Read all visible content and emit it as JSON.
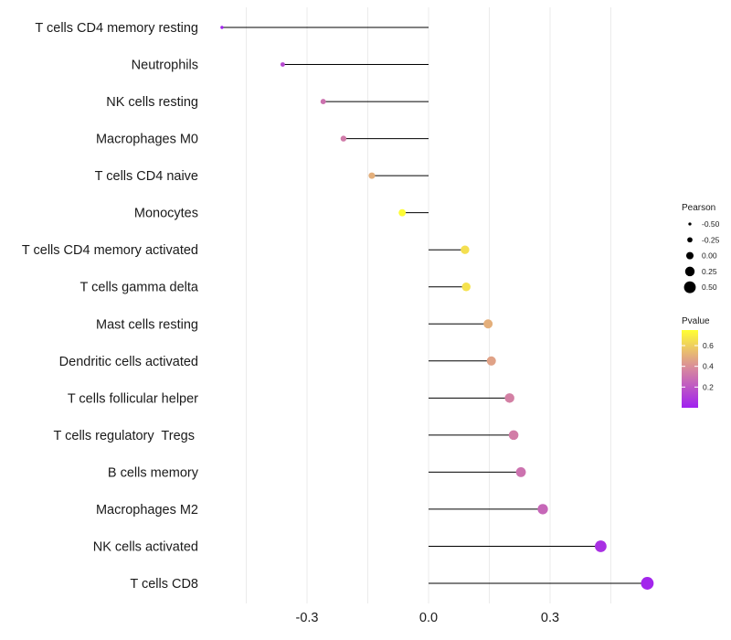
{
  "chart_data": {
    "type": "lollipop",
    "xlabel": "",
    "ylabel": "",
    "xlim": [
      -0.54,
      0.56
    ],
    "xticks": [
      "-0.3",
      "0.0",
      "0.3"
    ],
    "xtick_values": [
      -0.3,
      0.0,
      0.3
    ],
    "grid": true,
    "categories": [
      "T cells CD4 memory resting",
      "Neutrophils",
      "NK cells resting",
      "Macrophages M0",
      "T cells CD4 naive",
      "Monocytes",
      "T cells CD4 memory activated",
      "T cells gamma delta",
      "Mast cells resting",
      "Dendritic cells activated",
      "T cells follicular helper",
      "T cells regulatory  Tregs ",
      "B cells memory",
      "Macrophages M2",
      "NK cells activated",
      "T cells CD8"
    ],
    "pearson": [
      -0.51,
      -0.36,
      -0.26,
      -0.21,
      -0.14,
      -0.065,
      0.09,
      0.093,
      0.147,
      0.155,
      0.2,
      0.21,
      0.228,
      0.282,
      0.425,
      0.54
    ],
    "pvalue": [
      0.01,
      0.15,
      0.3,
      0.33,
      0.5,
      0.74,
      0.65,
      0.66,
      0.5,
      0.46,
      0.35,
      0.34,
      0.3,
      0.26,
      0.06,
      0.02
    ],
    "legend_size": {
      "title": "Pearson",
      "labels": [
        "-0.50",
        "-0.25",
        "0.00",
        "0.25",
        "0.50"
      ],
      "values": [
        -0.5,
        -0.25,
        0.0,
        0.25,
        0.5
      ]
    },
    "legend_color": {
      "title": "Pvalue",
      "labels": [
        "0.2",
        "0.4",
        "0.6"
      ],
      "values": [
        0.2,
        0.4,
        0.6
      ],
      "range": [
        0.0,
        0.75
      ],
      "low_color": "#a020f0",
      "mid_color": "#d7879f",
      "high_color": "#ffff33"
    },
    "stem_color": "#000000",
    "grid_color": "#ebebeb"
  }
}
